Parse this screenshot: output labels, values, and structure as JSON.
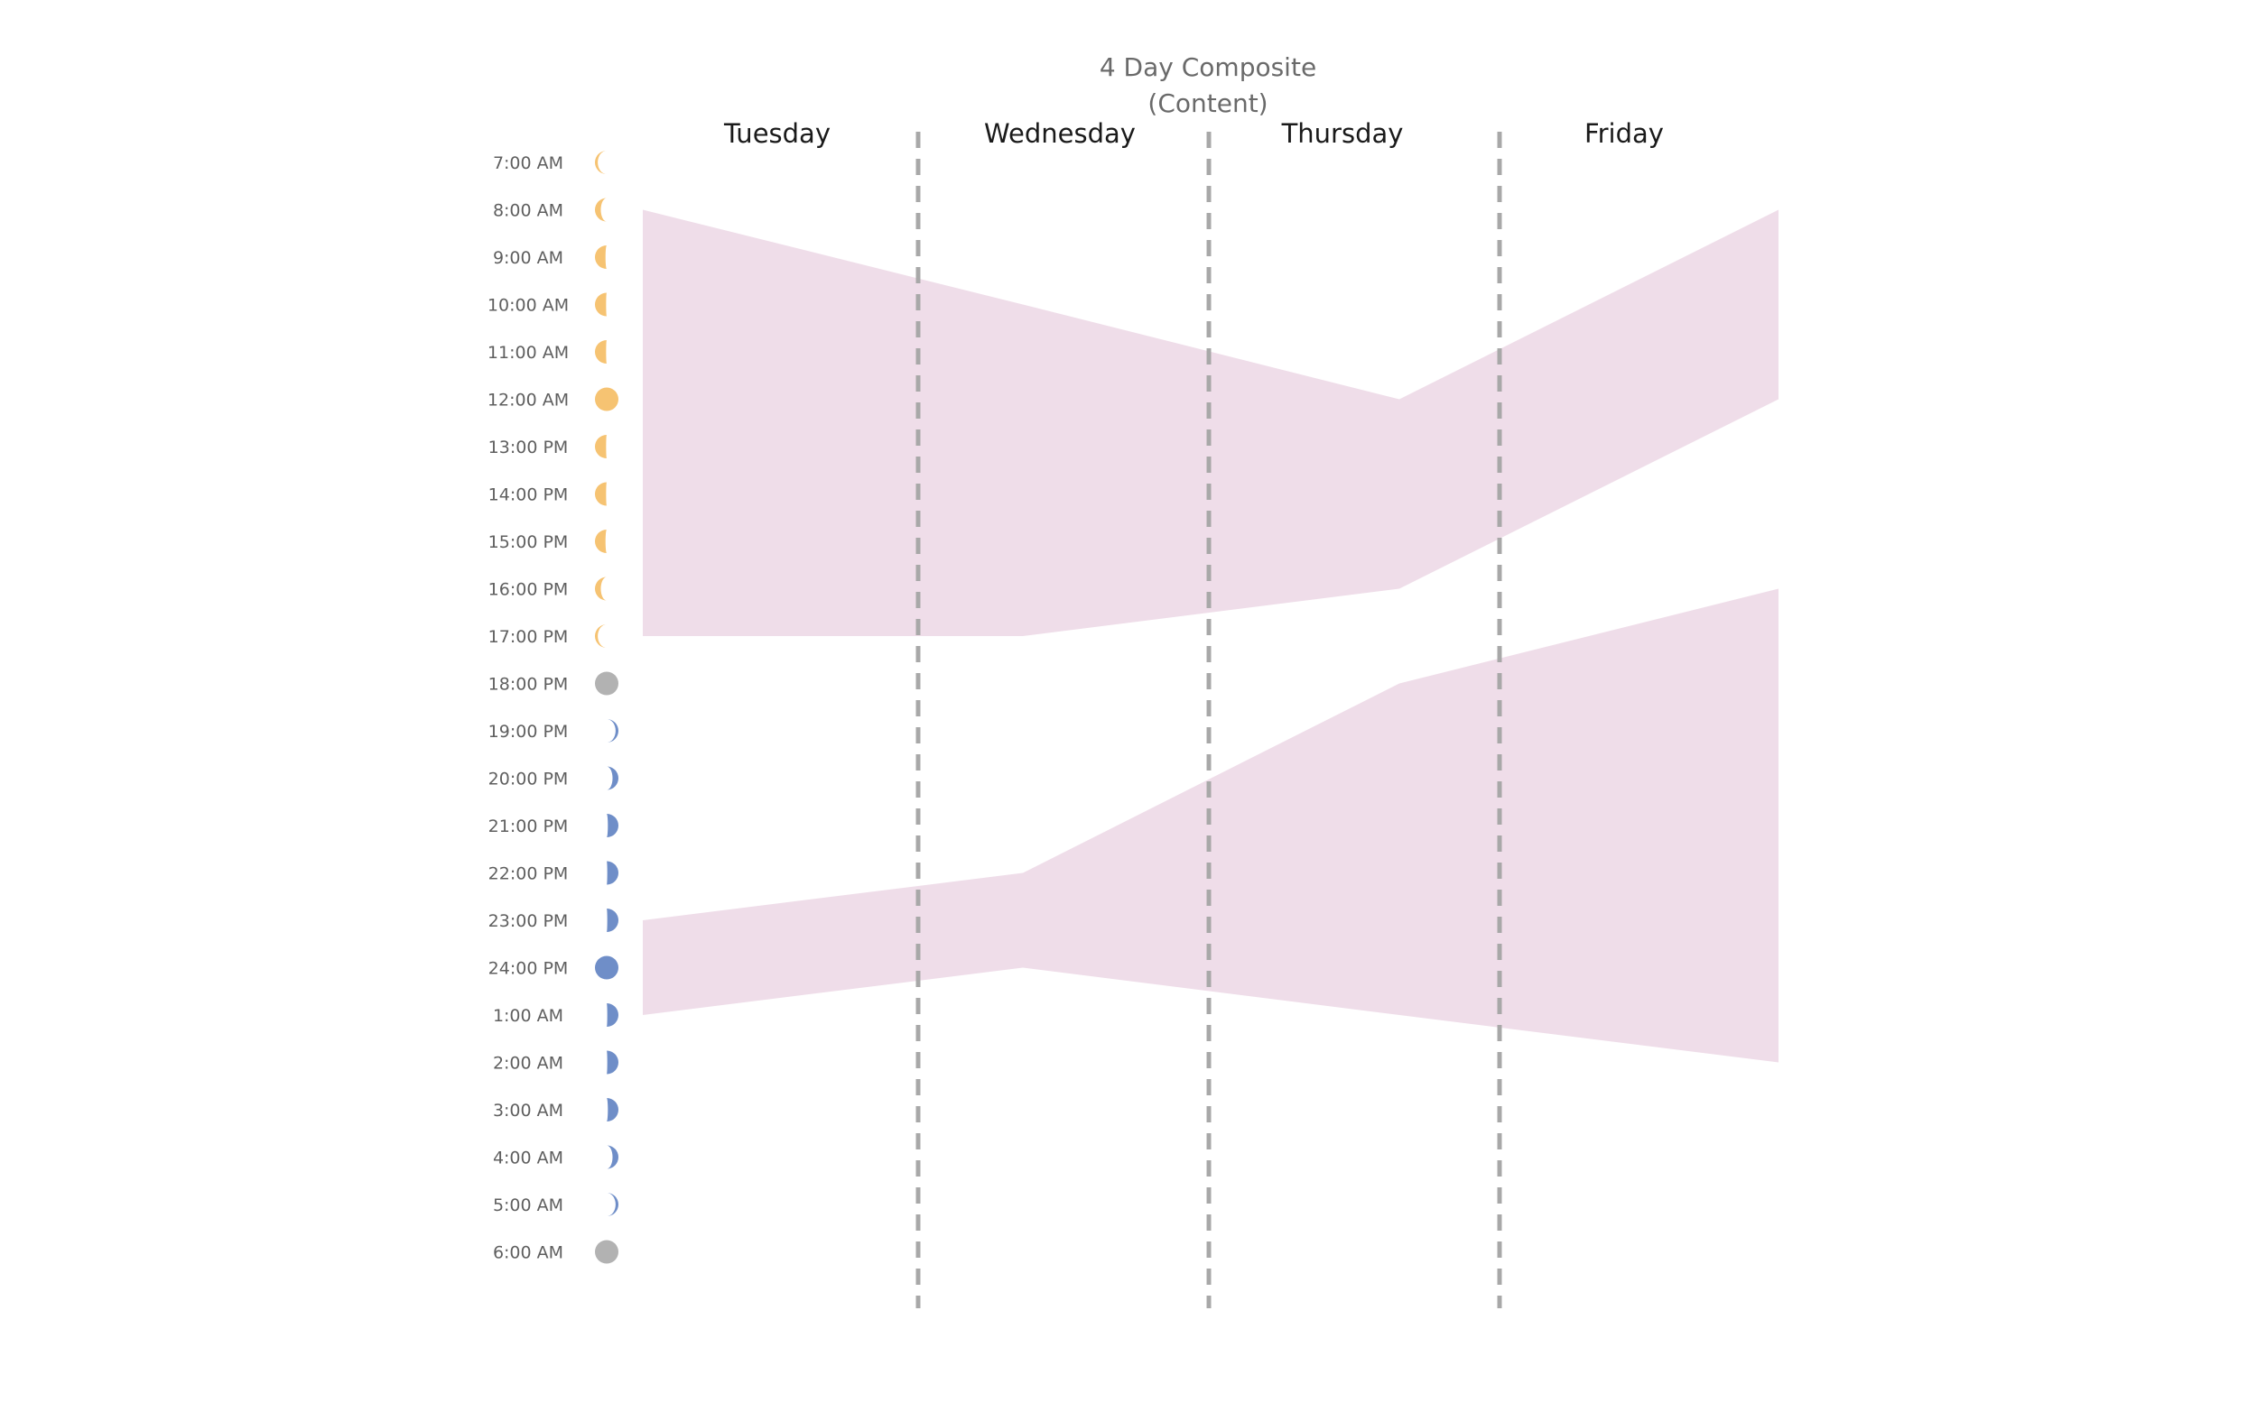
{
  "chart_data": {
    "type": "area",
    "title": "4 Day Composite",
    "subtitle": "(Content)",
    "categories": [
      "Tuesday",
      "Wednesday",
      "Thursday",
      "Friday"
    ],
    "time_labels": [
      "7:00 AM",
      "8:00 AM",
      "9:00 AM",
      "10:00 AM",
      "11:00 AM",
      "12:00 AM",
      "13:00 PM",
      "14:00 PM",
      "15:00 PM",
      "16:00 PM",
      "17:00 PM",
      "18:00 PM",
      "19:00 PM",
      "20:00 PM",
      "21:00 PM",
      "22:00 PM",
      "23:00 PM",
      "24:00 PM",
      "1:00 AM",
      "2:00 AM",
      "3:00 AM",
      "4:00 AM",
      "5:00 AM",
      "6:00 AM"
    ],
    "phases": [
      {
        "type": "day",
        "level": 0.12
      },
      {
        "type": "day",
        "level": 0.25
      },
      {
        "type": "day",
        "level": 0.45
      },
      {
        "type": "day",
        "level": 0.65
      },
      {
        "type": "day",
        "level": 0.85
      },
      {
        "type": "day",
        "level": 1.0
      },
      {
        "type": "day",
        "level": 0.85
      },
      {
        "type": "day",
        "level": 0.65
      },
      {
        "type": "day",
        "level": 0.45
      },
      {
        "type": "day",
        "level": 0.25
      },
      {
        "type": "day",
        "level": 0.12
      },
      {
        "type": "transition",
        "level": 1.0
      },
      {
        "type": "night",
        "level": 0.12
      },
      {
        "type": "night",
        "level": 0.25
      },
      {
        "type": "night",
        "level": 0.45
      },
      {
        "type": "night",
        "level": 0.65
      },
      {
        "type": "night",
        "level": 0.85
      },
      {
        "type": "night",
        "level": 1.0
      },
      {
        "type": "night",
        "level": 0.85
      },
      {
        "type": "night",
        "level": 0.65
      },
      {
        "type": "night",
        "level": 0.45
      },
      {
        "type": "night",
        "level": 0.25
      },
      {
        "type": "night",
        "level": 0.12
      },
      {
        "type": "transition",
        "level": 1.0
      }
    ],
    "x_points": [
      "Tuesday start",
      "Wednesday",
      "Thursday",
      "Friday end"
    ],
    "bands": [
      {
        "top": [
          "8:00 AM",
          "10:00 AM",
          "12:00 AM",
          "8:00 AM"
        ],
        "bottom": [
          "17:00 PM",
          "17:00 PM",
          "16:00 PM",
          "12:00 AM"
        ]
      },
      {
        "top": [
          "23:00 PM",
          "22:00 PM",
          "18:00 PM",
          "16:00 PM"
        ],
        "bottom": [
          "1:00 AM",
          "24:00 PM",
          "1:00 AM",
          "2:00 AM"
        ]
      }
    ],
    "colors": {
      "band": "#efdde9",
      "sun": "#f6c372",
      "moon": "#6f8ec8",
      "transition": "#b2b2b2",
      "divider": "#a8a8a8"
    },
    "grid": false,
    "legend": "none"
  }
}
